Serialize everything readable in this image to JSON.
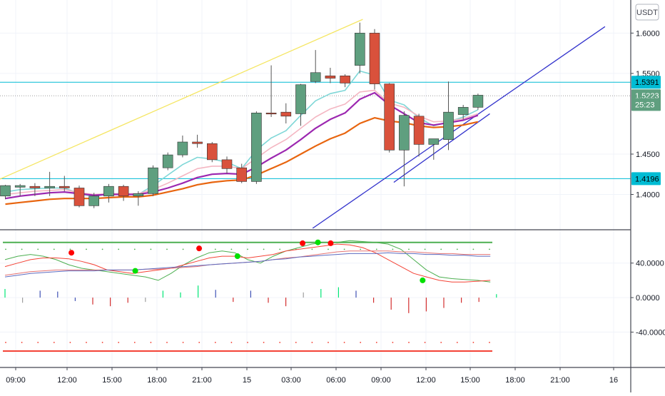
{
  "currency_button": "USDT",
  "chart_data": [
    {
      "type": "candlestick",
      "title": "",
      "price_axis": {
        "ticks": [
          "1.6000",
          "1.5500",
          "1.4500",
          "1.4000"
        ],
        "tick_values": [
          1.6,
          1.55,
          1.45,
          1.4
        ],
        "range": [
          1.358,
          1.641
        ]
      },
      "badges": [
        {
          "label": "1.5391",
          "value": 1.5391,
          "color": "#00bcd4",
          "text_color": "#000000"
        },
        {
          "label": "1.5223",
          "value": 1.5223,
          "color": "#5f9f7f",
          "text_color": "#ffffff"
        },
        {
          "label": "25:23",
          "value": 1.5115,
          "color": "#5f9f7f",
          "text_color": "#ffffff"
        },
        {
          "label": "1.4196",
          "value": 1.4196,
          "color": "#00bcd4",
          "text_color": "#000000"
        }
      ],
      "horizontal_lines": [
        {
          "value": 1.5391,
          "color": "#00bcd4",
          "style": "solid"
        },
        {
          "value": 1.4196,
          "color": "#00bcd4",
          "style": "solid"
        },
        {
          "value": 1.5223,
          "color": "#9e9e9e",
          "style": "dotted"
        }
      ],
      "candles": [
        {
          "o": 1.398,
          "h": 1.412,
          "l": 1.394,
          "c": 1.411
        },
        {
          "o": 1.409,
          "h": 1.413,
          "l": 1.398,
          "c": 1.411
        },
        {
          "o": 1.41,
          "h": 1.414,
          "l": 1.398,
          "c": 1.408
        },
        {
          "o": 1.408,
          "h": 1.428,
          "l": 1.398,
          "c": 1.41
        },
        {
          "o": 1.41,
          "h": 1.423,
          "l": 1.404,
          "c": 1.408
        },
        {
          "o": 1.408,
          "h": 1.411,
          "l": 1.384,
          "c": 1.386
        },
        {
          "o": 1.386,
          "h": 1.402,
          "l": 1.383,
          "c": 1.398
        },
        {
          "o": 1.398,
          "h": 1.413,
          "l": 1.39,
          "c": 1.41
        },
        {
          "o": 1.41,
          "h": 1.412,
          "l": 1.392,
          "c": 1.398
        },
        {
          "o": 1.398,
          "h": 1.404,
          "l": 1.386,
          "c": 1.401
        },
        {
          "o": 1.401,
          "h": 1.436,
          "l": 1.398,
          "c": 1.433
        },
        {
          "o": 1.433,
          "h": 1.452,
          "l": 1.43,
          "c": 1.449
        },
        {
          "o": 1.449,
          "h": 1.473,
          "l": 1.446,
          "c": 1.465
        },
        {
          "o": 1.465,
          "h": 1.474,
          "l": 1.458,
          "c": 1.463
        },
        {
          "o": 1.463,
          "h": 1.465,
          "l": 1.44,
          "c": 1.443
        },
        {
          "o": 1.443,
          "h": 1.447,
          "l": 1.426,
          "c": 1.432
        },
        {
          "o": 1.433,
          "h": 1.438,
          "l": 1.414,
          "c": 1.416
        },
        {
          "o": 1.416,
          "h": 1.503,
          "l": 1.413,
          "c": 1.501
        },
        {
          "o": 1.501,
          "h": 1.56,
          "l": 1.496,
          "c": 1.5
        },
        {
          "o": 1.502,
          "h": 1.513,
          "l": 1.488,
          "c": 1.497
        },
        {
          "o": 1.5,
          "h": 1.537,
          "l": 1.485,
          "c": 1.536
        },
        {
          "o": 1.54,
          "h": 1.579,
          "l": 1.538,
          "c": 1.551
        },
        {
          "o": 1.547,
          "h": 1.557,
          "l": 1.538,
          "c": 1.544
        },
        {
          "o": 1.547,
          "h": 1.549,
          "l": 1.533,
          "c": 1.538
        },
        {
          "o": 1.56,
          "h": 1.613,
          "l": 1.55,
          "c": 1.6
        },
        {
          "o": 1.6,
          "h": 1.605,
          "l": 1.53,
          "c": 1.537
        },
        {
          "o": 1.537,
          "h": 1.538,
          "l": 1.452,
          "c": 1.455
        },
        {
          "o": 1.455,
          "h": 1.503,
          "l": 1.41,
          "c": 1.498
        },
        {
          "o": 1.497,
          "h": 1.5,
          "l": 1.447,
          "c": 1.462
        },
        {
          "o": 1.462,
          "h": 1.468,
          "l": 1.443,
          "c": 1.469
        },
        {
          "o": 1.468,
          "h": 1.54,
          "l": 1.455,
          "c": 1.502
        },
        {
          "o": 1.499,
          "h": 1.511,
          "l": 1.493,
          "c": 1.508
        },
        {
          "o": 1.508,
          "h": 1.525,
          "l": 1.505,
          "c": 1.523
        }
      ],
      "moving_averages": [
        {
          "color": "#7fd7d7",
          "values": [
            1.403,
            1.406,
            1.407,
            1.408,
            1.408,
            1.401,
            1.397,
            1.401,
            1.401,
            1.4,
            1.411,
            1.424,
            1.437,
            1.446,
            1.444,
            1.44,
            1.432,
            1.455,
            1.47,
            1.479,
            1.498,
            1.516,
            1.525,
            1.529,
            1.553,
            1.548,
            1.517,
            1.511,
            1.495,
            1.485,
            1.49,
            1.496,
            1.505
          ]
        },
        {
          "color": "#f4b6c2",
          "values": [
            1.4,
            1.402,
            1.404,
            1.405,
            1.406,
            1.402,
            1.4,
            1.401,
            1.401,
            1.401,
            1.406,
            1.414,
            1.423,
            1.432,
            1.435,
            1.435,
            1.432,
            1.445,
            1.458,
            1.468,
            1.482,
            1.496,
            1.506,
            1.512,
            1.527,
            1.529,
            1.513,
            1.508,
            1.497,
            1.49,
            1.491,
            1.494,
            1.5
          ]
        },
        {
          "color": "#9c27b0",
          "values": [
            1.395,
            1.398,
            1.4,
            1.402,
            1.403,
            1.401,
            1.399,
            1.4,
            1.4,
            1.4,
            1.403,
            1.408,
            1.414,
            1.421,
            1.425,
            1.426,
            1.425,
            1.434,
            1.445,
            1.455,
            1.468,
            1.482,
            1.493,
            1.501,
            1.518,
            1.526,
            1.511,
            1.5,
            1.489,
            1.486,
            1.489,
            1.492,
            1.498
          ]
        },
        {
          "color": "#e8650f",
          "values": [
            1.388,
            1.39,
            1.392,
            1.394,
            1.395,
            1.395,
            1.395,
            1.396,
            1.397,
            1.397,
            1.399,
            1.403,
            1.407,
            1.412,
            1.415,
            1.417,
            1.418,
            1.424,
            1.432,
            1.44,
            1.45,
            1.46,
            1.469,
            1.476,
            1.488,
            1.495,
            1.491,
            1.489,
            1.485,
            1.483,
            1.484,
            1.486,
            1.49
          ]
        }
      ],
      "trend_lines": [
        {
          "color": "#f5e663",
          "from": {
            "bar": -0.5,
            "price": 1.418
          },
          "to": {
            "bar": 24.2,
            "price": 1.617
          }
        },
        {
          "color": "#3333cc",
          "from": {
            "bar": 20.8,
            "price": 1.358
          },
          "to": {
            "bar": 40.6,
            "price": 1.608
          }
        },
        {
          "color": "#3333cc",
          "from": {
            "bar": 26.3,
            "price": 1.415
          },
          "to": {
            "bar": 32.8,
            "price": 1.5
          }
        }
      ]
    },
    {
      "type": "line",
      "title": "",
      "value_axis": {
        "ticks": [
          "40.0000",
          "0.0000",
          "-40.0000"
        ],
        "tick_values": [
          40,
          0,
          -40
        ],
        "range": [
          -81,
          77
        ]
      },
      "levels": [
        {
          "value": 64,
          "color": "#4caf50"
        },
        {
          "value": -62,
          "color": "#f44336"
        }
      ],
      "dotted_levels": [
        {
          "value": 56,
          "color": "#4caf50"
        },
        {
          "value": -52,
          "color": "#f44336"
        }
      ],
      "series": [
        {
          "color": "#4caf50",
          "values": [
            44,
            48,
            50,
            48,
            44,
            38,
            34,
            32,
            30,
            28,
            26,
            24,
            20,
            28,
            38,
            46,
            52,
            54,
            52,
            44,
            40,
            48,
            54,
            58,
            62,
            64,
            64,
            66,
            65,
            64,
            62,
            56,
            44,
            32,
            24,
            22,
            21,
            20,
            18
          ]
        },
        {
          "color": "#f44336",
          "values": [
            36,
            40,
            44,
            46,
            46,
            45,
            42,
            38,
            32,
            30,
            28,
            30,
            32,
            34,
            38,
            42,
            46,
            48,
            48,
            46,
            48,
            50,
            54,
            56,
            58,
            60,
            62,
            61,
            58,
            52,
            44,
            36,
            28,
            24,
            20,
            18,
            18,
            19,
            20
          ]
        },
        {
          "color": "#e57373",
          "values": [
            26,
            28,
            30,
            31,
            32,
            32,
            32,
            32,
            32,
            32,
            32,
            33,
            33,
            34,
            35,
            36,
            38,
            39,
            40,
            41,
            42,
            44,
            46,
            47,
            49,
            51,
            53,
            54,
            54,
            54,
            54,
            53,
            53,
            52,
            51,
            51,
            50,
            50,
            50
          ]
        },
        {
          "color": "#5c6bc0",
          "values": [
            24,
            26,
            28,
            29,
            30,
            31,
            31,
            31,
            32,
            32,
            32,
            33,
            34,
            35,
            36,
            37,
            38,
            39,
            40,
            41,
            42,
            44,
            45,
            47,
            48,
            49,
            50,
            51,
            51,
            51,
            52,
            51,
            51,
            50,
            50,
            49,
            49,
            48,
            48
          ]
        }
      ],
      "histogram": [
        {
          "v": 10,
          "c": "#00e676"
        },
        {
          "v": -6,
          "c": "#9e9e9e"
        },
        {
          "v": 8,
          "c": "#3f51b5"
        },
        {
          "v": 7,
          "c": "#3f51b5"
        },
        {
          "v": -4,
          "c": "#3f51b5"
        },
        {
          "v": -8,
          "c": "#d32f2f"
        },
        {
          "v": -10,
          "c": "#d32f2f"
        },
        {
          "v": -6,
          "c": "#d32f2f"
        },
        {
          "v": -5,
          "c": "#9e9e9e"
        },
        {
          "v": 8,
          "c": "#00e676"
        },
        {
          "v": 6,
          "c": "#00e676"
        },
        {
          "v": 14,
          "c": "#00e676"
        },
        {
          "v": 9,
          "c": "#3f51b5"
        },
        {
          "v": -5,
          "c": "#d32f2f"
        },
        {
          "v": 8,
          "c": "#3f51b5"
        },
        {
          "v": -6,
          "c": "#d32f2f"
        },
        {
          "v": -10,
          "c": "#d32f2f"
        },
        {
          "v": 6,
          "c": "#9e9e9e"
        },
        {
          "v": 10,
          "c": "#00e676"
        },
        {
          "v": 12,
          "c": "#00e676"
        },
        {
          "v": 8,
          "c": "#3f51b5"
        },
        {
          "v": -6,
          "c": "#d32f2f"
        },
        {
          "v": -14,
          "c": "#d32f2f"
        },
        {
          "v": -18,
          "c": "#d32f2f"
        },
        {
          "v": -16,
          "c": "#d32f2f"
        },
        {
          "v": -12,
          "c": "#d32f2f"
        },
        {
          "v": -6,
          "c": "#d32f2f"
        },
        {
          "v": -5,
          "c": "#d32f2f"
        },
        {
          "v": 4,
          "c": "#00e676"
        }
      ],
      "signal_dots": [
        {
          "i": 5.2,
          "v": 52,
          "color": "#ff0000"
        },
        {
          "i": 10.2,
          "v": 31,
          "color": "#00e000"
        },
        {
          "i": 15.2,
          "v": 57,
          "color": "#ff0000"
        },
        {
          "i": 18.2,
          "v": 48,
          "color": "#00e000"
        },
        {
          "i": 23.3,
          "v": 63,
          "color": "#ff0000"
        },
        {
          "i": 24.5,
          "v": 64,
          "color": "#00e000"
        },
        {
          "i": 25.5,
          "v": 63,
          "color": "#ff0000"
        },
        {
          "i": 32.7,
          "v": 20,
          "color": "#00e000"
        }
      ]
    }
  ],
  "time_axis": {
    "labels": [
      "09:00",
      "12:00",
      "15:00",
      "18:00",
      "21:00",
      "15",
      "03:00",
      "06:00",
      "09:00",
      "12:00",
      "15:00",
      "18:00",
      "21:00",
      "16"
    ]
  }
}
